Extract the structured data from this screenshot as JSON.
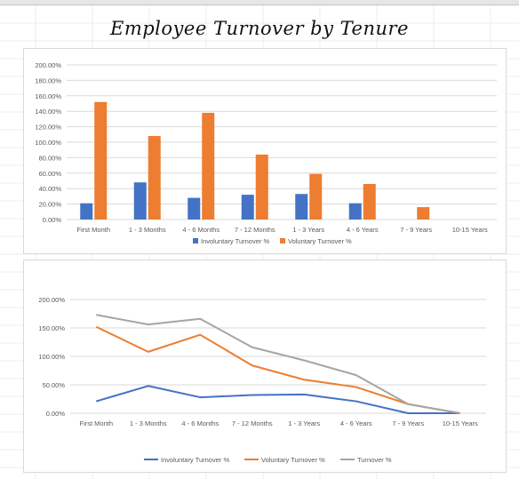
{
  "title": "Employee Turnover by Tenure",
  "colors": {
    "involuntary": "#4472c4",
    "voluntary": "#ed7d31",
    "total": "#a5a5a5",
    "grid": "#d9d9d9",
    "axis_text": "#595959"
  },
  "chart_data": [
    {
      "type": "bar",
      "categories": [
        "First Month",
        "1 - 3 Months",
        "4 - 6 Months",
        "7 - 12 Months",
        "1 - 3 Years",
        "4 - 6 Years",
        "7 - 9 Years",
        "10-15 Years"
      ],
      "series": [
        {
          "name": "Involuntary Turnover %",
          "values": [
            21,
            48,
            28,
            32,
            33,
            21,
            null,
            null
          ]
        },
        {
          "name": "Voluntary Turnover %",
          "values": [
            152,
            108,
            138,
            84,
            59,
            46,
            16,
            null
          ]
        }
      ],
      "ylim": [
        0,
        200
      ],
      "yticks": [
        0,
        20,
        40,
        60,
        80,
        100,
        120,
        140,
        160,
        180,
        200
      ],
      "ytick_labels": [
        "0.00%",
        "20.00%",
        "40.00%",
        "60.00%",
        "80.00%",
        "100.00%",
        "120.00%",
        "140.00%",
        "160.00%",
        "180.00%",
        "200.00%"
      ],
      "grid": true,
      "legend": "bottom"
    },
    {
      "type": "line",
      "categories": [
        "First Month",
        "1 - 3 Months",
        "4 - 6 Months",
        "7 - 12 Months",
        "1 - 3 Years",
        "4 - 6 Years",
        "7 - 9 Years",
        "10-15 Years"
      ],
      "series": [
        {
          "name": "Involuntary Turnover %",
          "values": [
            21,
            48,
            28,
            32,
            33,
            21,
            0,
            0
          ]
        },
        {
          "name": "Voluntary Turnover %",
          "values": [
            152,
            108,
            138,
            84,
            59,
            46,
            16,
            0
          ]
        },
        {
          "name": "Turnover %",
          "values": [
            173,
            156,
            166,
            116,
            93,
            67,
            16,
            0
          ]
        }
      ],
      "ylim": [
        0,
        200
      ],
      "yticks": [
        0,
        50,
        100,
        150,
        200
      ],
      "ytick_labels": [
        "0.00%",
        "50.00%",
        "100.00%",
        "150.00%",
        "200.00%"
      ],
      "grid": true,
      "legend": "bottom"
    }
  ]
}
